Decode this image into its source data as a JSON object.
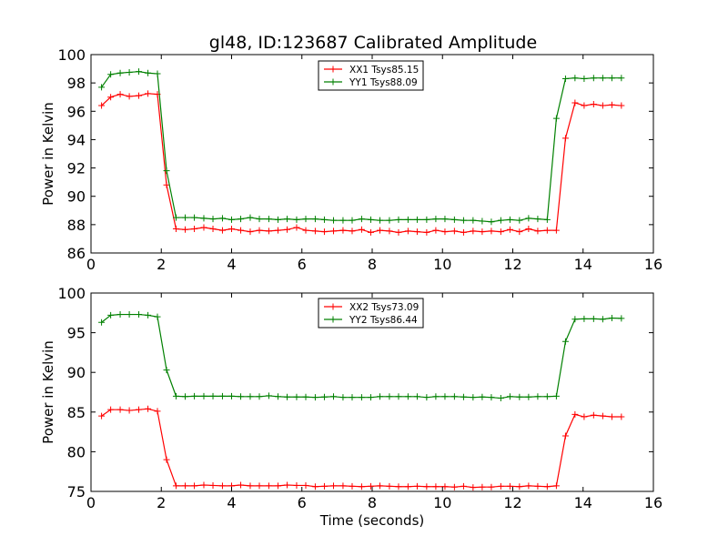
{
  "figure": {
    "title": "gl48, ID:123687 Calibrated Amplitude"
  },
  "chart_data": [
    {
      "type": "line",
      "title": "gl48, ID:123687 Calibrated Amplitude",
      "xlabel": "",
      "ylabel": "Power in Kelvin",
      "xlim": [
        0,
        16
      ],
      "ylim": [
        86,
        100
      ],
      "xticks": [
        0,
        2,
        4,
        6,
        8,
        10,
        12,
        14,
        16
      ],
      "yticks": [
        86,
        88,
        90,
        92,
        94,
        96,
        98,
        100
      ],
      "grid": false,
      "legend_position": "top-center",
      "marker": "+",
      "x": [
        0.3,
        0.56,
        0.83,
        1.09,
        1.36,
        1.62,
        1.89,
        2.15,
        2.42,
        2.68,
        2.94,
        3.21,
        3.47,
        3.74,
        4.0,
        4.26,
        4.53,
        4.79,
        5.06,
        5.32,
        5.58,
        5.85,
        6.11,
        6.38,
        6.64,
        6.9,
        7.17,
        7.43,
        7.7,
        7.96,
        8.22,
        8.49,
        8.75,
        9.02,
        9.28,
        9.55,
        9.81,
        10.07,
        10.34,
        10.6,
        10.87,
        11.13,
        11.39,
        11.66,
        11.92,
        12.19,
        12.45,
        12.71,
        12.98,
        13.24,
        13.5,
        13.77,
        14.03,
        14.3,
        14.56,
        14.82,
        15.09
      ],
      "series": [
        {
          "name": "XX1 Tsys85.15",
          "color": "#ff0000",
          "values": [
            96.4,
            97.0,
            97.2,
            97.05,
            97.1,
            97.25,
            97.2,
            90.8,
            87.7,
            87.65,
            87.7,
            87.8,
            87.7,
            87.6,
            87.7,
            87.6,
            87.5,
            87.6,
            87.55,
            87.6,
            87.65,
            87.8,
            87.6,
            87.55,
            87.5,
            87.55,
            87.6,
            87.55,
            87.65,
            87.45,
            87.6,
            87.55,
            87.45,
            87.55,
            87.5,
            87.45,
            87.6,
            87.5,
            87.55,
            87.45,
            87.55,
            87.5,
            87.55,
            87.5,
            87.65,
            87.5,
            87.7,
            87.55,
            87.6,
            87.6,
            94.1,
            96.6,
            96.4,
            96.5,
            96.4,
            96.45,
            96.4
          ]
        },
        {
          "name": "YY1 Tsys88.09",
          "color": "#008000",
          "values": [
            97.7,
            98.6,
            98.7,
            98.75,
            98.8,
            98.7,
            98.65,
            91.8,
            88.5,
            88.5,
            88.5,
            88.45,
            88.4,
            88.45,
            88.35,
            88.4,
            88.5,
            88.4,
            88.4,
            88.35,
            88.4,
            88.35,
            88.4,
            88.4,
            88.35,
            88.3,
            88.3,
            88.3,
            88.4,
            88.35,
            88.3,
            88.3,
            88.35,
            88.35,
            88.35,
            88.35,
            88.4,
            88.4,
            88.35,
            88.3,
            88.3,
            88.25,
            88.2,
            88.3,
            88.35,
            88.3,
            88.45,
            88.4,
            88.35,
            95.5,
            98.3,
            98.35,
            98.3,
            98.35,
            98.35,
            98.35,
            98.35
          ]
        }
      ]
    },
    {
      "type": "line",
      "title": "",
      "xlabel": "Time (seconds)",
      "ylabel": "Power in Kelvin",
      "xlim": [
        0,
        16
      ],
      "ylim": [
        75,
        100
      ],
      "xticks": [
        0,
        2,
        4,
        6,
        8,
        10,
        12,
        14,
        16
      ],
      "yticks": [
        75,
        80,
        85,
        90,
        95,
        100
      ],
      "grid": false,
      "legend_position": "top-center",
      "marker": "+",
      "x": [
        0.3,
        0.56,
        0.83,
        1.09,
        1.36,
        1.62,
        1.89,
        2.15,
        2.42,
        2.68,
        2.94,
        3.21,
        3.47,
        3.74,
        4.0,
        4.26,
        4.53,
        4.79,
        5.06,
        5.32,
        5.58,
        5.85,
        6.11,
        6.38,
        6.64,
        6.9,
        7.17,
        7.43,
        7.7,
        7.96,
        8.22,
        8.49,
        8.75,
        9.02,
        9.28,
        9.55,
        9.81,
        10.07,
        10.34,
        10.6,
        10.87,
        11.13,
        11.39,
        11.66,
        11.92,
        12.19,
        12.45,
        12.71,
        12.98,
        13.24,
        13.5,
        13.77,
        14.03,
        14.3,
        14.56,
        14.82,
        15.09
      ],
      "series": [
        {
          "name": "XX2 Tsys73.09",
          "color": "#ff0000",
          "values": [
            84.5,
            85.3,
            85.3,
            85.2,
            85.3,
            85.4,
            85.1,
            79.0,
            75.7,
            75.7,
            75.7,
            75.8,
            75.75,
            75.7,
            75.7,
            75.8,
            75.7,
            75.7,
            75.7,
            75.7,
            75.8,
            75.75,
            75.75,
            75.6,
            75.65,
            75.7,
            75.7,
            75.65,
            75.6,
            75.65,
            75.7,
            75.65,
            75.6,
            75.6,
            75.65,
            75.6,
            75.6,
            75.6,
            75.55,
            75.65,
            75.5,
            75.55,
            75.55,
            75.65,
            75.65,
            75.6,
            75.7,
            75.65,
            75.6,
            75.7,
            82.0,
            84.7,
            84.4,
            84.6,
            84.5,
            84.4,
            84.4
          ]
        },
        {
          "name": "YY2 Tsys86.44",
          "color": "#008000",
          "values": [
            96.3,
            97.2,
            97.3,
            97.3,
            97.3,
            97.2,
            97.0,
            90.3,
            87.0,
            86.95,
            87.0,
            87.0,
            87.0,
            87.0,
            87.0,
            86.95,
            86.95,
            86.95,
            87.05,
            86.95,
            86.9,
            86.9,
            86.9,
            86.85,
            86.9,
            86.95,
            86.85,
            86.85,
            86.85,
            86.85,
            86.95,
            86.95,
            86.95,
            86.95,
            86.95,
            86.85,
            86.95,
            86.95,
            86.95,
            86.9,
            86.85,
            86.9,
            86.85,
            86.75,
            86.95,
            86.9,
            86.9,
            86.95,
            86.95,
            87.0,
            93.9,
            96.7,
            96.75,
            96.75,
            96.7,
            96.85,
            96.8
          ]
        }
      ]
    }
  ]
}
